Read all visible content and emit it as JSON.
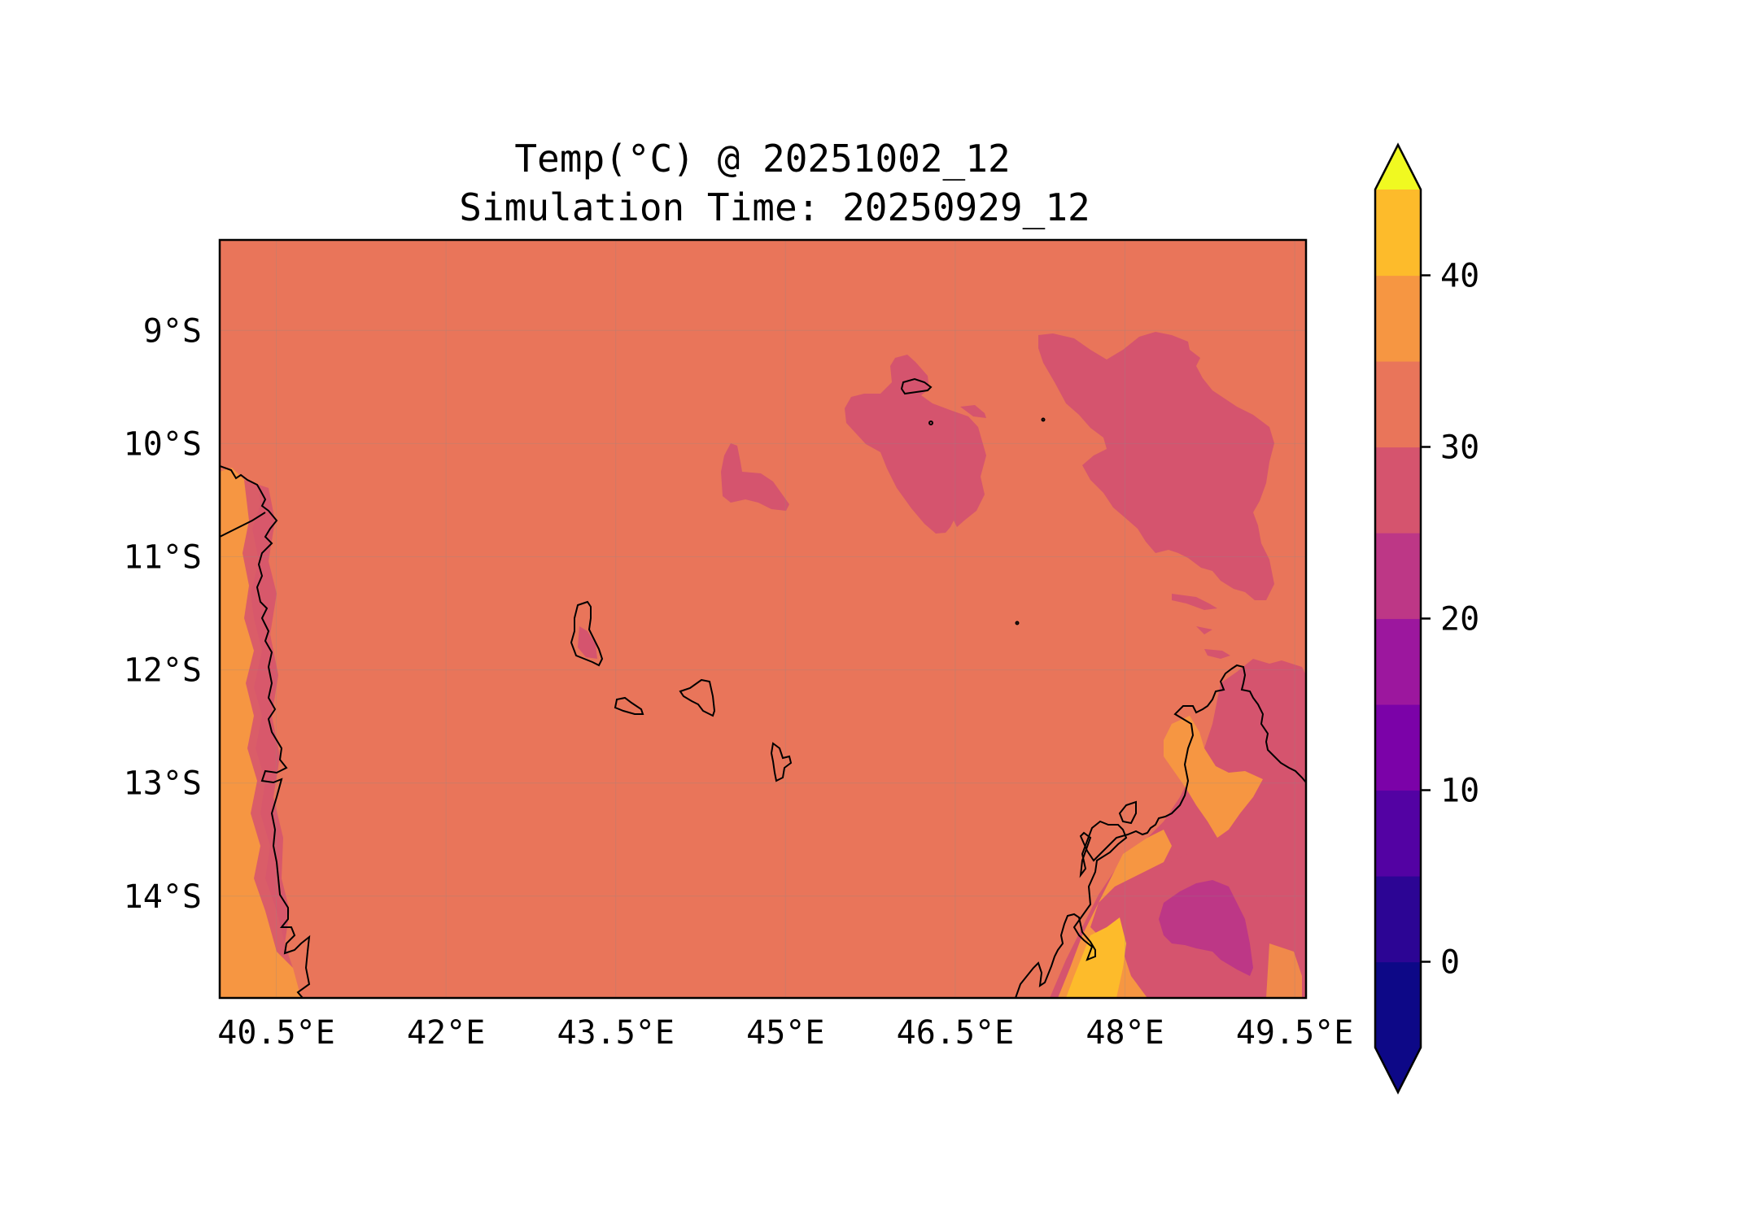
{
  "title": {
    "line1": "Temp(°C) @ 20251002_12",
    "line2": "Simulation Time: 20250929_12"
  },
  "map": {
    "lon_range": [
      40.0,
      49.6
    ],
    "lat_range": [
      -14.9,
      -8.2
    ],
    "background_level_color": "#e9755a",
    "x_ticks": [
      {
        "value": 40.5,
        "label": "40.5°E"
      },
      {
        "value": 42.0,
        "label": "42°E"
      },
      {
        "value": 43.5,
        "label": "43.5°E"
      },
      {
        "value": 45.0,
        "label": "45°E"
      },
      {
        "value": 46.5,
        "label": "46.5°E"
      },
      {
        "value": 48.0,
        "label": "48°E"
      },
      {
        "value": 49.5,
        "label": "49.5°E"
      }
    ],
    "y_ticks": [
      {
        "value": -9,
        "label": "9°S"
      },
      {
        "value": -10,
        "label": "10°S"
      },
      {
        "value": -11,
        "label": "11°S"
      },
      {
        "value": -12,
        "label": "12°S"
      },
      {
        "value": -13,
        "label": "13°S"
      },
      {
        "value": -14,
        "label": "14°S"
      }
    ],
    "grid": true
  },
  "colorbar": {
    "type": "discrete",
    "extend": "both",
    "levels": [
      -5,
      0,
      5,
      10,
      15,
      20,
      25,
      30,
      35,
      40,
      45
    ],
    "colors": [
      "#0d0887",
      "#2c0594",
      "#5302a3",
      "#7b02a8",
      "#9c179e",
      "#bd3786",
      "#d5546e",
      "#e9755a",
      "#f69642",
      "#fdbb2b",
      "#f6e22b"
    ],
    "under_color": "#0d0887",
    "over_color": "#f0f921",
    "ticks": [
      {
        "value": 0,
        "label": "0"
      },
      {
        "value": 10,
        "label": "10"
      },
      {
        "value": 20,
        "label": "20"
      },
      {
        "value": 30,
        "label": "30"
      },
      {
        "value": 40,
        "label": "40"
      }
    ]
  }
}
